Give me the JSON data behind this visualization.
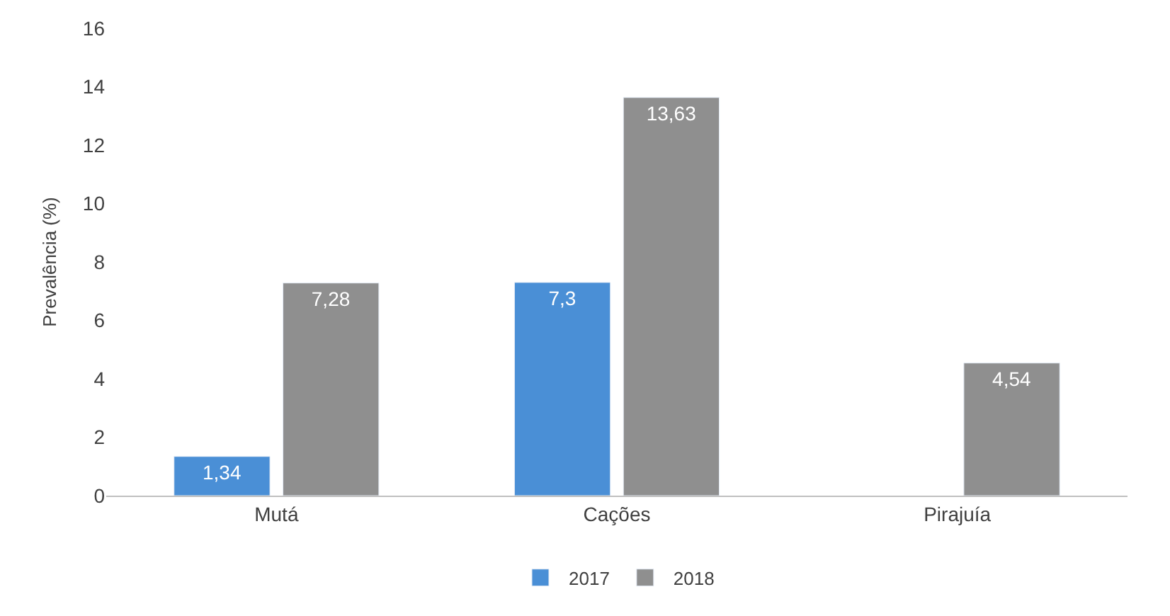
{
  "chart_data": {
    "type": "bar",
    "ylabel": "Prevalência (%)",
    "categories": [
      "Mutá",
      "Cações",
      "Pirajuía"
    ],
    "series": [
      {
        "name": "2017",
        "color": "#4a8fd6",
        "values": [
          1.34,
          7.3,
          null
        ],
        "value_labels": [
          "1,34",
          "7,3",
          null
        ]
      },
      {
        "name": "2018",
        "color": "#8f8f8f",
        "values": [
          7.28,
          13.63,
          4.54
        ],
        "value_labels": [
          "7,28",
          "13,63",
          "4,54"
        ]
      }
    ],
    "ylim": [
      0,
      16
    ],
    "yticks": [
      0,
      2,
      4,
      6,
      8,
      10,
      12,
      14,
      16
    ],
    "legend": "bottom"
  }
}
